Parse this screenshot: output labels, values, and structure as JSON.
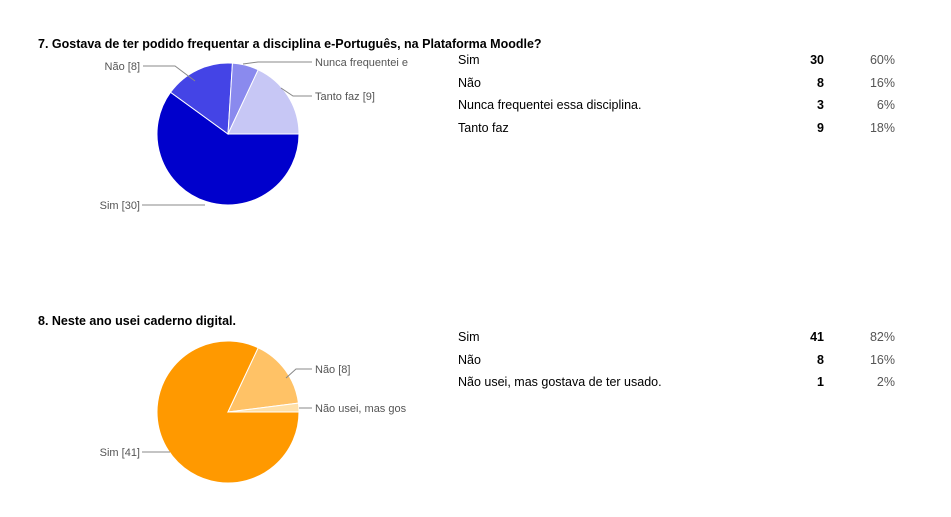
{
  "chart_data": [
    {
      "type": "pie",
      "title": "7. Gostava de ter podido frequentar a disciplina e-Português, na Plataforma Moodle?",
      "categories": [
        "Sim",
        "Não",
        "Nunca frequentei essa disciplina.",
        "Tanto faz"
      ],
      "values": [
        30,
        8,
        3,
        9
      ],
      "percentages": [
        "60%",
        "16%",
        "6%",
        "18%"
      ],
      "slice_labels": [
        "Sim [30]",
        "Não [8]",
        "Nunca frequentei e",
        "Tanto faz [9]"
      ],
      "colors": [
        "#0000cc",
        "#4444e6",
        "#8a8aee",
        "#c7c7f5"
      ],
      "legend": "none"
    },
    {
      "type": "pie",
      "title": "8. Neste ano usei caderno digital.",
      "categories": [
        "Sim",
        "Não",
        "Não usei, mas gostava de ter usado."
      ],
      "values": [
        41,
        8,
        1
      ],
      "percentages": [
        "82%",
        "16%",
        "2%"
      ],
      "slice_labels": [
        "Sim [41]",
        "Não [8]",
        "Não usei, mas gos"
      ],
      "colors": [
        "#ff9900",
        "#ffc266",
        "#ffe0a8"
      ],
      "legend": "none"
    }
  ]
}
